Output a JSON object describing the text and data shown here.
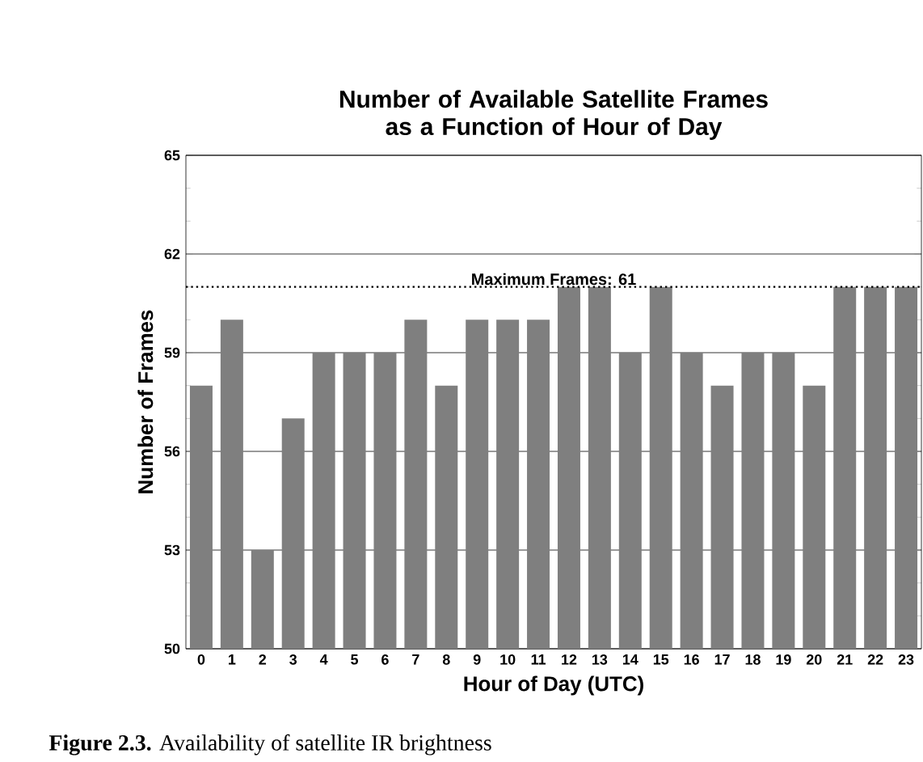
{
  "chart_data": {
    "type": "bar",
    "title": "Number of Available Satellite Frames as a Function of Hour of Day",
    "xlabel": "Hour of Day (UTC)",
    "ylabel": "Number of Frames",
    "categories": [
      "0",
      "1",
      "2",
      "3",
      "4",
      "5",
      "6",
      "7",
      "8",
      "9",
      "10",
      "11",
      "12",
      "13",
      "14",
      "15",
      "16",
      "17",
      "18",
      "19",
      "20",
      "21",
      "22",
      "23"
    ],
    "values": [
      58,
      60,
      53,
      57,
      59,
      59,
      59,
      60,
      58,
      60,
      60,
      60,
      61,
      61,
      59,
      61,
      59,
      58,
      59,
      59,
      58,
      61,
      61,
      61
    ],
    "color": "#7f7f7f",
    "ylim": [
      50,
      65
    ],
    "yticks": [
      50,
      53,
      56,
      59,
      62,
      65
    ],
    "grid": "y",
    "ref_lines": [
      {
        "axis": "y",
        "value": 61,
        "label": "Maximum Frames: 61",
        "line_style": "dotted",
        "color": "#000000"
      }
    ],
    "annotations": [
      "**Figure 2.3.** Availability of satellite IR brightness"
    ]
  }
}
